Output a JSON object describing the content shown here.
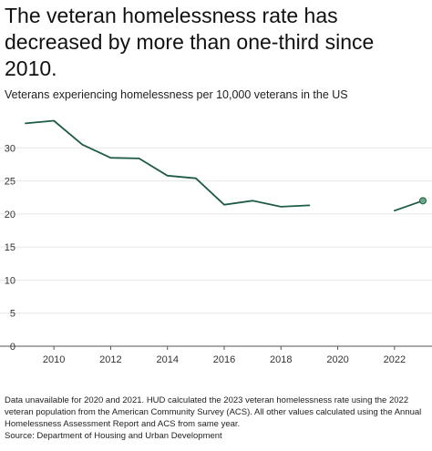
{
  "title": "The veteran homelessness rate has decreased by more than one-third since 2010.",
  "subtitle": "Veterans experiencing homelessness per 10,000 veterans in the US",
  "notes": "Data unavailable for 2020 and 2021. HUD calculated the 2023 veteran homelessness rate using the 2022 veteran population from the American Community Survey (ACS). All other values calculated using the Annual Homelessness Assessment Report and ACS from same year.",
  "source": "Source: Department of Housing and Urban Development",
  "colors": {
    "line": "#1f5c45",
    "marker": "#6aa889",
    "grid": "#e6e6e6",
    "axis": "#555555"
  },
  "chart_data": {
    "type": "line",
    "title": "The veteran homelessness rate has decreased by more than one-third since 2010.",
    "ylabel": "Veterans experiencing homelessness per 10,000 veterans in the US",
    "xlim": [
      2009,
      2023
    ],
    "ylim": [
      0,
      35
    ],
    "x_ticks": [
      2010,
      2012,
      2014,
      2016,
      2018,
      2020,
      2022
    ],
    "y_ticks": [
      0,
      5,
      10,
      15,
      20,
      25,
      30
    ],
    "x_tick_labels": [
      "2010",
      "2012",
      "2014",
      "2016",
      "2018",
      "2020",
      "2022"
    ],
    "y_tick_labels": [
      "0",
      "5",
      "10",
      "15",
      "20",
      "25",
      "30"
    ],
    "grid": "horizontal",
    "series": [
      {
        "segments": [
          [
            {
              "x": 2009,
              "y": 33.7
            },
            {
              "x": 2010,
              "y": 34.1
            },
            {
              "x": 2011,
              "y": 30.5
            },
            {
              "x": 2012,
              "y": 28.5
            },
            {
              "x": 2013,
              "y": 28.4
            },
            {
              "x": 2014,
              "y": 25.8
            },
            {
              "x": 2015,
              "y": 25.4
            },
            {
              "x": 2016,
              "y": 21.4
            },
            {
              "x": 2017,
              "y": 22.0
            },
            {
              "x": 2018,
              "y": 21.1
            },
            {
              "x": 2019,
              "y": 21.3
            }
          ],
          [
            {
              "x": 2022,
              "y": 20.5
            },
            {
              "x": 2023,
              "y": 22.0
            }
          ]
        ],
        "highlight_last": true
      }
    ]
  }
}
